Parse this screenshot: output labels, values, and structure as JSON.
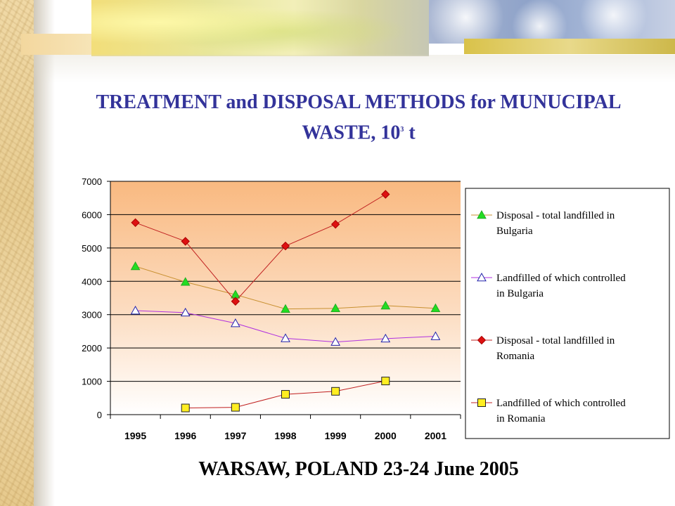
{
  "slide": {
    "title_main": "TREATMENT and DISPOSAL METHODS for MUNUCIPAL",
    "title_line2": "WASTE, 10",
    "title_sup": "3",
    "title_unit": " t",
    "footer": "WARSAW, POLAND 23-24 June 2005"
  },
  "chart_data": {
    "type": "line",
    "categories": [
      "1995",
      "1996",
      "1997",
      "1998",
      "1999",
      "2000",
      "2001"
    ],
    "ylim": [
      0,
      7000
    ],
    "yticks": [
      "0",
      "1000",
      "2000",
      "3000",
      "4000",
      "5000",
      "6000",
      "7000"
    ],
    "grid": true,
    "legend_position": "right",
    "series": [
      {
        "name": "Disposal - total landfilled in Bulgaria",
        "name_lines": [
          "Disposal - total landfilled in",
          "Bulgaria"
        ],
        "values": [
          4450,
          3980,
          3600,
          3170,
          3190,
          3270,
          3190
        ],
        "line_color": "#c89030",
        "marker": "triangle",
        "marker_fill": "#22dd22",
        "marker_stroke": "#22aa22"
      },
      {
        "name": "Landfilled of which controlled in Bulgaria",
        "name_lines": [
          "Landfilled of which controlled",
          "in Bulgaria"
        ],
        "values": [
          3120,
          3060,
          2740,
          2290,
          2180,
          2280,
          2350
        ],
        "line_color": "#b030e0",
        "marker": "triangle",
        "marker_fill": "#ffffff",
        "marker_stroke": "#2222aa"
      },
      {
        "name": "Disposal - total landfilled in Romania",
        "name_lines": [
          "Disposal - total landfilled in",
          "Romania"
        ],
        "values": [
          5760,
          5200,
          3400,
          5060,
          5710,
          6610,
          null
        ],
        "line_color": "#c02020",
        "marker": "diamond",
        "marker_fill": "#dd1111",
        "marker_stroke": "#aa0000"
      },
      {
        "name": "Landfilled of which controlled in Romania",
        "name_lines": [
          "Landfilled of which controlled",
          "in Romania"
        ],
        "values": [
          null,
          200,
          220,
          610,
          700,
          1010,
          null
        ],
        "line_color": "#c02020",
        "marker": "square",
        "marker_fill": "#ffee22",
        "marker_stroke": "#222222"
      }
    ]
  }
}
